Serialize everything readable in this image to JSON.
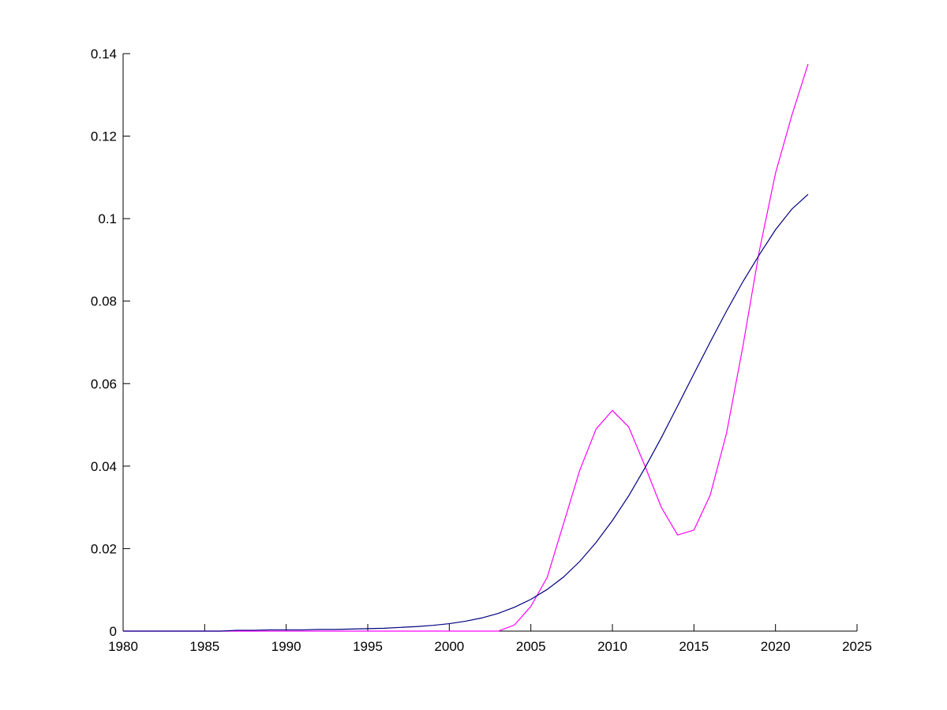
{
  "chart_data": {
    "type": "line",
    "x": [
      1980,
      1981,
      1982,
      1983,
      1984,
      1985,
      1986,
      1987,
      1988,
      1989,
      1990,
      1991,
      1992,
      1993,
      1994,
      1995,
      1996,
      1997,
      1998,
      1999,
      2000,
      2001,
      2002,
      2003,
      2004,
      2005,
      2006,
      2007,
      2008,
      2009,
      2010,
      2011,
      2012,
      2013,
      2014,
      2015,
      2016,
      2017,
      2018,
      2019,
      2020,
      2021,
      2022
    ],
    "series": [
      {
        "color": "#ff00ff",
        "values": [
          0,
          0,
          0,
          0,
          0,
          0,
          0,
          0,
          0,
          0,
          0,
          0,
          0,
          0,
          0,
          0,
          0,
          0,
          0,
          0,
          0,
          0,
          0,
          0,
          0.0015,
          0.006,
          0.013,
          0.026,
          0.039,
          0.049,
          0.0535,
          0.0495,
          0.04,
          0.03,
          0.0233,
          0.0245,
          0.033,
          0.048,
          0.069,
          0.092,
          0.111,
          0.125,
          0.1375
        ]
      },
      {
        "color": "#000080",
        "values": [
          0,
          0,
          0,
          0,
          0,
          0,
          0,
          0.0002,
          0.0002,
          0.0003,
          0.0003,
          0.0003,
          0.0004,
          0.0004,
          0.0005,
          0.0006,
          0.0007,
          0.0009,
          0.0011,
          0.0014,
          0.0018,
          0.0024,
          0.0032,
          0.0043,
          0.0058,
          0.0077,
          0.0101,
          0.0131,
          0.0169,
          0.0215,
          0.0268,
          0.0328,
          0.0396,
          0.0469,
          0.0546,
          0.0624,
          0.0701,
          0.0776,
          0.0847,
          0.0912,
          0.0973,
          0.1023,
          0.1059
        ]
      }
    ],
    "xlim": [
      1980,
      2025
    ],
    "xticks": [
      1980,
      1985,
      1990,
      1995,
      2000,
      2005,
      2010,
      2015,
      2020,
      2025
    ],
    "ylim": [
      0,
      0.14
    ],
    "yticks": [
      0,
      0.02,
      0.04,
      0.06,
      0.08,
      0.1,
      0.12,
      0.14
    ],
    "grid": false
  }
}
